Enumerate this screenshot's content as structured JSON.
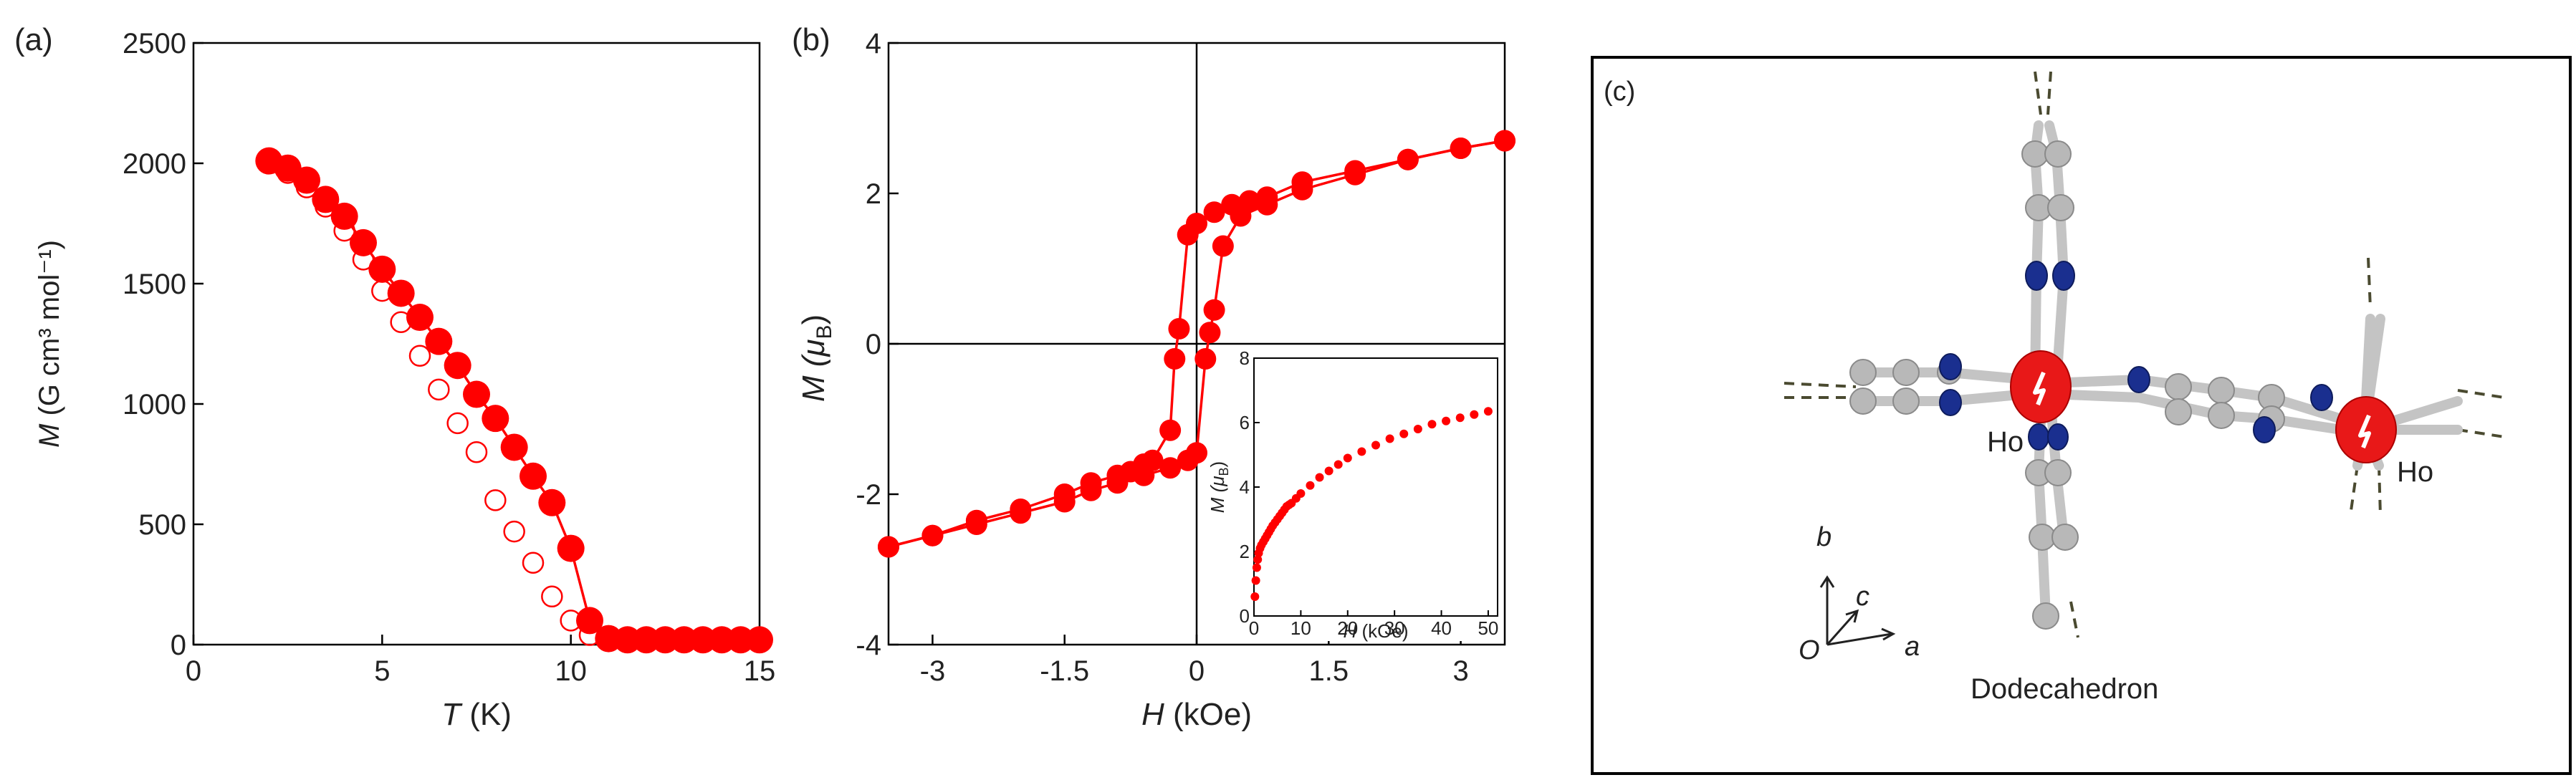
{
  "chart_data": [
    {
      "panel": "(a)",
      "type": "scatter",
      "xlabel_var": "T",
      "xlabel_unit": " (K)",
      "ylabel_var": "M",
      "ylabel_unit": " (G cm³ mol⁻¹)",
      "xlim": [
        0,
        15
      ],
      "ylim": [
        0,
        2500
      ],
      "xticks": [
        0,
        5,
        10,
        15
      ],
      "yticks": [
        0,
        500,
        1000,
        1500,
        2000,
        2500
      ],
      "series": [
        {
          "name": "filled",
          "style": "filled-circle-line",
          "color": "#ff0000",
          "x": [
            2.0,
            2.5,
            3.0,
            3.5,
            4.0,
            4.5,
            5.0,
            5.5,
            6.0,
            6.5,
            7.0,
            7.5,
            8.0,
            8.5,
            9.0,
            9.5,
            10.0,
            10.5,
            11.0,
            11.5,
            12.0,
            12.5,
            13.0,
            13.5,
            14.0,
            14.5,
            15.0
          ],
          "y": [
            2010,
            1980,
            1930,
            1850,
            1780,
            1670,
            1560,
            1460,
            1360,
            1260,
            1160,
            1040,
            940,
            820,
            700,
            590,
            400,
            100,
            25,
            20,
            20,
            20,
            20,
            20,
            20,
            20,
            20
          ]
        },
        {
          "name": "open",
          "style": "open-circle",
          "color": "#ff0000",
          "x": [
            2.0,
            2.5,
            3.0,
            3.5,
            4.0,
            4.5,
            5.0,
            5.5,
            6.0,
            6.5,
            7.0,
            7.5,
            8.0,
            8.5,
            9.0,
            9.5,
            10.0,
            10.5,
            11.0,
            11.5,
            12.0
          ],
          "y": [
            2000,
            1960,
            1900,
            1820,
            1720,
            1600,
            1470,
            1340,
            1200,
            1060,
            920,
            800,
            600,
            470,
            340,
            200,
            100,
            40,
            20,
            15,
            15
          ]
        }
      ]
    },
    {
      "panel": "(b)",
      "type": "line",
      "xlabel_var": "H",
      "xlabel_unit": " (kOe)",
      "ylabel_var": "M (μ",
      "ylabel_sub": "B",
      "ylabel_close": ")",
      "xlim": [
        -3.5,
        3.5
      ],
      "ylim": [
        -4,
        4
      ],
      "xticks": [
        -3,
        -1.5,
        0,
        1.5,
        3
      ],
      "xtick_labels": [
        "-3",
        "-1.5",
        "0",
        "1.5",
        "3"
      ],
      "yticks": [
        -4,
        -2,
        0,
        2,
        4
      ],
      "series": [
        {
          "name": "descending branch",
          "color": "#ff0000",
          "x": [
            3.5,
            3.0,
            2.4,
            1.8,
            1.2,
            0.8,
            0.6,
            0.4,
            0.2,
            0.0,
            -0.1,
            -0.2,
            -0.25,
            -0.3,
            -0.5,
            -0.6,
            -0.75,
            -0.9,
            -1.2,
            -1.5,
            -2.0,
            -2.5,
            -3.0,
            -3.5
          ],
          "y": [
            2.7,
            2.6,
            2.45,
            2.3,
            2.15,
            1.95,
            1.9,
            1.85,
            1.75,
            1.6,
            1.45,
            0.2,
            -0.2,
            -1.15,
            -1.55,
            -1.6,
            -1.7,
            -1.75,
            -1.85,
            -2.0,
            -2.2,
            -2.35,
            -2.55,
            -2.7
          ]
        },
        {
          "name": "ascending branch",
          "color": "#ff0000",
          "x": [
            -3.5,
            -3.0,
            -2.5,
            -2.0,
            -1.5,
            -1.2,
            -0.9,
            -0.6,
            -0.3,
            -0.1,
            0.0,
            0.1,
            0.15,
            0.2,
            0.3,
            0.5,
            0.8,
            1.2,
            1.8,
            2.4,
            3.0,
            3.5
          ],
          "y": [
            -2.7,
            -2.55,
            -2.4,
            -2.25,
            -2.1,
            -1.95,
            -1.85,
            -1.75,
            -1.65,
            -1.55,
            -1.45,
            -0.2,
            0.15,
            0.45,
            1.3,
            1.7,
            1.85,
            2.05,
            2.25,
            2.45,
            2.6,
            2.7
          ]
        }
      ],
      "inset": {
        "xlabel_var": "H",
        "xlabel_unit": " (kOe)",
        "ylabel_var": "M (μ",
        "ylabel_sub": "B",
        "ylabel_close": ")",
        "xlim": [
          0,
          52
        ],
        "ylim": [
          0,
          8
        ],
        "xticks": [
          0,
          10,
          20,
          30,
          40,
          50
        ],
        "yticks": [
          0,
          2,
          4,
          6,
          8
        ],
        "x": [
          0.2,
          0.4,
          0.6,
          0.8,
          1.0,
          1.3,
          1.6,
          2.0,
          2.4,
          2.8,
          3.2,
          3.6,
          4.0,
          4.5,
          5.0,
          5.5,
          6.0,
          6.5,
          7.0,
          7.5,
          8.0,
          9.0,
          10.0,
          12.0,
          14.0,
          16.0,
          18.0,
          20.0,
          23.0,
          26.0,
          29.0,
          32.0,
          35.0,
          38.0,
          41.0,
          44.0,
          47.0,
          50.0
        ],
        "y": [
          0.6,
          1.1,
          1.5,
          1.75,
          1.95,
          2.1,
          2.2,
          2.3,
          2.4,
          2.5,
          2.6,
          2.7,
          2.8,
          2.9,
          3.0,
          3.1,
          3.2,
          3.3,
          3.4,
          3.45,
          3.5,
          3.65,
          3.8,
          4.05,
          4.3,
          4.5,
          4.7,
          4.9,
          5.1,
          5.3,
          5.5,
          5.65,
          5.8,
          5.95,
          6.05,
          6.15,
          6.25,
          6.35
        ]
      }
    }
  ],
  "panel_c": {
    "panel_label": "(c)",
    "atom_labels": [
      "Ho",
      "Ho"
    ],
    "axis_labels": [
      "b",
      "c",
      "a",
      "O"
    ],
    "caption": "Dodecahedron",
    "colors": {
      "ho": "#e81818",
      "nitrogen": "#1a2f8f",
      "carbon": "#b4b4b4"
    }
  }
}
